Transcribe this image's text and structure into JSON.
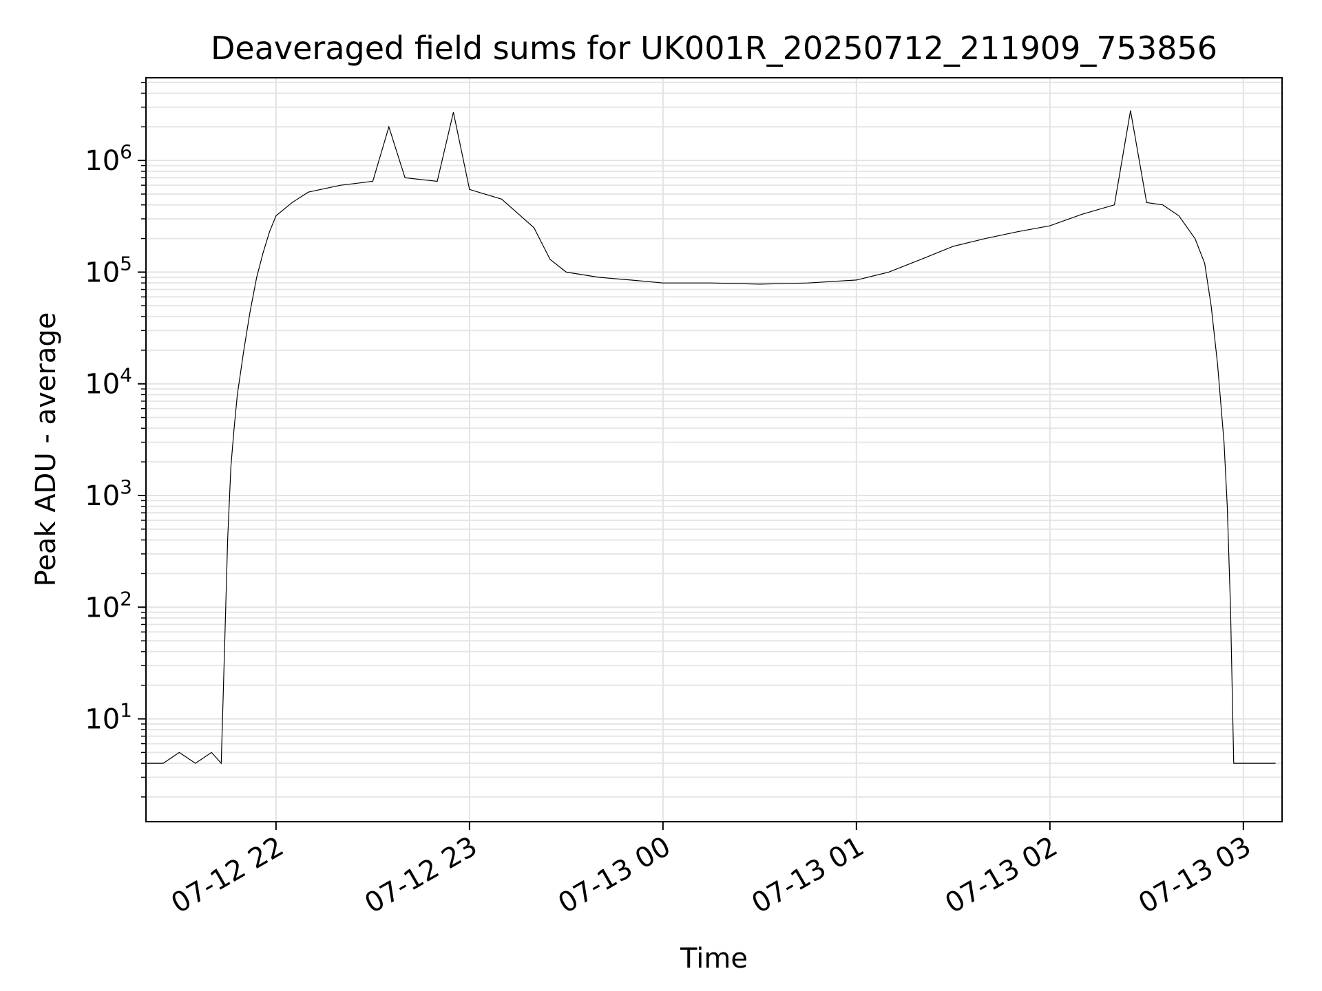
{
  "chart_data": {
    "type": "line",
    "title": "Deaveraged field sums for UK001R_20250712_211909_753856",
    "xlabel": "Time",
    "ylabel": "Peak ADU - average",
    "yscale": "log",
    "ylim": [
      1.2,
      5500000
    ],
    "xlim": [
      "2025-07-12 21:19:40",
      "2025-07-13 03:12:00"
    ],
    "grid": true,
    "line_color": "#000000",
    "x_ticks": [
      {
        "label": "07-12 22",
        "t": "2025-07-12 22:00"
      },
      {
        "label": "07-12 23",
        "t": "2025-07-12 23:00"
      },
      {
        "label": "07-13 00",
        "t": "2025-07-13 00:00"
      },
      {
        "label": "07-13 01",
        "t": "2025-07-13 01:00"
      },
      {
        "label": "07-13 02",
        "t": "2025-07-13 02:00"
      },
      {
        "label": "07-13 03",
        "t": "2025-07-13 03:00"
      }
    ],
    "y_ticks": [
      {
        "base": "10",
        "exp": "1",
        "value": 10
      },
      {
        "base": "10",
        "exp": "2",
        "value": 100
      },
      {
        "base": "10",
        "exp": "3",
        "value": 1000
      },
      {
        "base": "10",
        "exp": "4",
        "value": 10000
      },
      {
        "base": "10",
        "exp": "5",
        "value": 100000
      },
      {
        "base": "10",
        "exp": "6",
        "value": 1000000
      }
    ],
    "series": [
      {
        "points": [
          [
            "2025-07-12 21:20",
            4
          ],
          [
            "2025-07-12 21:25",
            4
          ],
          [
            "2025-07-12 21:30",
            5
          ],
          [
            "2025-07-12 21:35",
            4
          ],
          [
            "2025-07-12 21:40",
            5
          ],
          [
            "2025-07-12 21:43",
            4
          ],
          [
            "2025-07-12 21:44",
            40
          ],
          [
            "2025-07-12 21:45",
            400
          ],
          [
            "2025-07-12 21:46",
            1800
          ],
          [
            "2025-07-12 21:47",
            4000
          ],
          [
            "2025-07-12 21:48",
            8000
          ],
          [
            "2025-07-12 21:50",
            20000
          ],
          [
            "2025-07-12 21:52",
            45000
          ],
          [
            "2025-07-12 21:54",
            90000
          ],
          [
            "2025-07-12 21:56",
            150000
          ],
          [
            "2025-07-12 21:58",
            230000
          ],
          [
            "2025-07-12 22:00",
            320000
          ],
          [
            "2025-07-12 22:05",
            420000
          ],
          [
            "2025-07-12 22:10",
            520000
          ],
          [
            "2025-07-12 22:20",
            600000
          ],
          [
            "2025-07-12 22:30",
            650000
          ],
          [
            "2025-07-12 22:35",
            2000000
          ],
          [
            "2025-07-12 22:40",
            700000
          ],
          [
            "2025-07-12 22:50",
            650000
          ],
          [
            "2025-07-12 22:55",
            2700000
          ],
          [
            "2025-07-12 23:00",
            550000
          ],
          [
            "2025-07-12 23:10",
            450000
          ],
          [
            "2025-07-12 23:20",
            250000
          ],
          [
            "2025-07-12 23:25",
            130000
          ],
          [
            "2025-07-12 23:30",
            100000
          ],
          [
            "2025-07-12 23:40",
            90000
          ],
          [
            "2025-07-12 23:50",
            85000
          ],
          [
            "2025-07-13 00:00",
            80000
          ],
          [
            "2025-07-13 00:15",
            80000
          ],
          [
            "2025-07-13 00:30",
            78000
          ],
          [
            "2025-07-13 00:45",
            80000
          ],
          [
            "2025-07-13 01:00",
            85000
          ],
          [
            "2025-07-13 01:10",
            100000
          ],
          [
            "2025-07-13 01:20",
            130000
          ],
          [
            "2025-07-13 01:30",
            170000
          ],
          [
            "2025-07-13 01:40",
            200000
          ],
          [
            "2025-07-13 01:50",
            230000
          ],
          [
            "2025-07-13 02:00",
            260000
          ],
          [
            "2025-07-13 02:10",
            330000
          ],
          [
            "2025-07-13 02:20",
            400000
          ],
          [
            "2025-07-13 02:25",
            2800000
          ],
          [
            "2025-07-13 02:30",
            420000
          ],
          [
            "2025-07-13 02:35",
            400000
          ],
          [
            "2025-07-13 02:40",
            320000
          ],
          [
            "2025-07-13 02:45",
            200000
          ],
          [
            "2025-07-13 02:48",
            120000
          ],
          [
            "2025-07-13 02:50",
            50000
          ],
          [
            "2025-07-13 02:52",
            15000
          ],
          [
            "2025-07-13 02:54",
            3000
          ],
          [
            "2025-07-13 02:55",
            800
          ],
          [
            "2025-07-13 02:56",
            100
          ],
          [
            "2025-07-13 02:57",
            4
          ],
          [
            "2025-07-13 03:00",
            4
          ],
          [
            "2025-07-13 03:05",
            4
          ],
          [
            "2025-07-13 03:10",
            4
          ]
        ]
      }
    ]
  }
}
